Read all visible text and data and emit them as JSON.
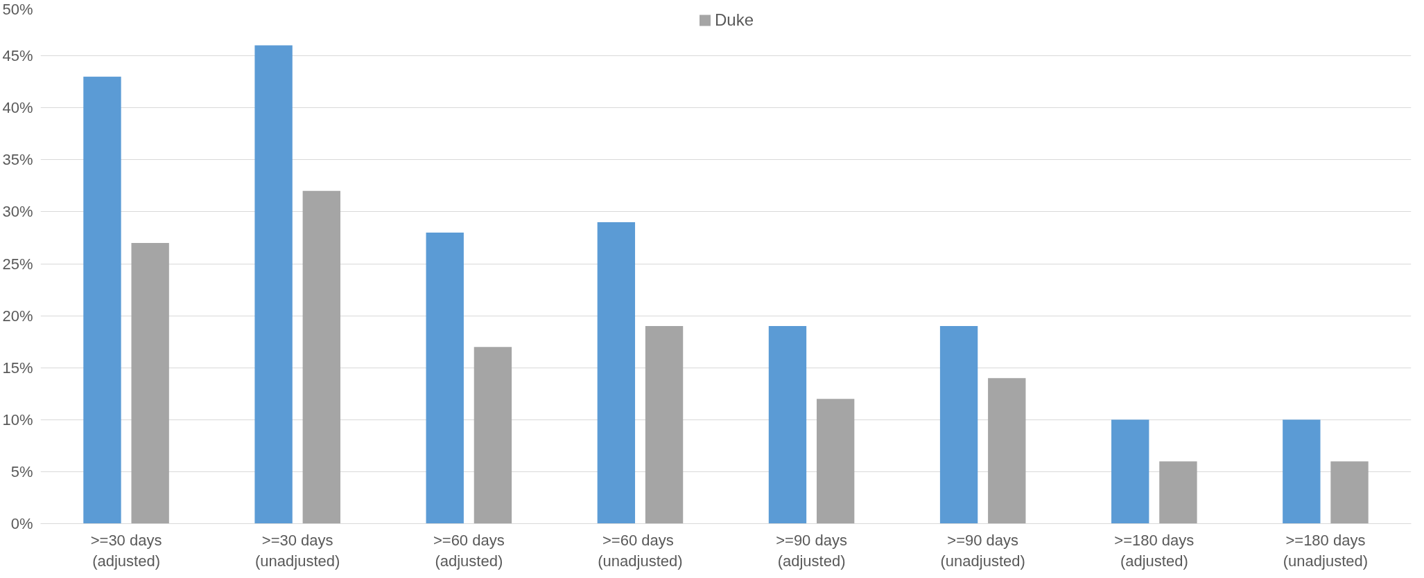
{
  "chart_data": {
    "type": "bar",
    "categories": [
      ">=30 days\n(adjusted)",
      ">=30 days\n(unadjusted)",
      ">=60 days\n(adjusted)",
      ">=60  days\n(unadjusted)",
      ">=90 days\n(adjusted)",
      ">=90 days\n(unadjusted)",
      ">=180 days\n(adjusted)",
      ">=180 days\n(unadjusted)"
    ],
    "series": [
      {
        "color": "#5b9bd5",
        "values": [
          43,
          46,
          28,
          29,
          19,
          19,
          10,
          10
        ]
      },
      {
        "name": "Duke",
        "color": "#a5a5a5",
        "values": [
          27,
          32,
          17,
          19,
          12,
          14,
          6,
          6
        ]
      }
    ],
    "ylim": [
      0,
      50
    ],
    "yticks": [
      {
        "value": 0,
        "label": "0%"
      },
      {
        "value": 5,
        "label": "5%"
      },
      {
        "value": 10,
        "label": "10%"
      },
      {
        "value": 15,
        "label": "15%"
      },
      {
        "value": 20,
        "label": "20%"
      },
      {
        "value": 25,
        "label": "25%"
      },
      {
        "value": 30,
        "label": "30%"
      },
      {
        "value": 35,
        "label": "35%"
      },
      {
        "value": 40,
        "label": "40%"
      },
      {
        "value": 45,
        "label": "45%"
      },
      {
        "value": 50,
        "label": "50%"
      }
    ],
    "grid": "y",
    "legend": "top"
  }
}
